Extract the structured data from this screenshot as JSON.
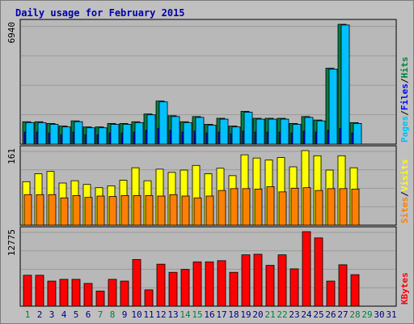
{
  "title": "Daily usage for February 2015",
  "colors": {
    "background": "#c0c0c0",
    "plot_background": "#b8b8b8",
    "gridline": "#9a9a9a",
    "title": "#0000aa",
    "hits": "#008040",
    "files": "#0000ff",
    "pages": "#00c0ff",
    "visits": "#ffff00",
    "sites": "#ff8000",
    "kbytes": "#ff0000",
    "weekday_label": "#008040",
    "day_label": "#000080"
  },
  "chart_data": [
    {
      "type": "bar",
      "title": "Daily usage for February 2015",
      "ymax_label": "6940",
      "ylim": [
        0,
        6940
      ],
      "grid": true,
      "axis_labels": [
        {
          "text": "Pages",
          "color": "#00c0ff"
        },
        {
          "text": "/",
          "color": "#000000"
        },
        {
          "text": "Files",
          "color": "#0000ff"
        },
        {
          "text": "/",
          "color": "#000000"
        },
        {
          "text": "Hits",
          "color": "#008040"
        }
      ],
      "categories": [
        1,
        2,
        3,
        4,
        5,
        6,
        7,
        8,
        9,
        10,
        11,
        12,
        13,
        14,
        15,
        16,
        17,
        18,
        19,
        20,
        21,
        22,
        23,
        24,
        25,
        26,
        27,
        28,
        29,
        30,
        31
      ],
      "series": [
        {
          "name": "Hits",
          "values": [
            1300,
            1300,
            1200,
            1050,
            1350,
            1000,
            1000,
            1200,
            1200,
            1300,
            1750,
            2500,
            1650,
            1300,
            1600,
            1150,
            1500,
            1050,
            1900,
            1500,
            1500,
            1500,
            1200,
            1600,
            1400,
            4400,
            6940,
            1250,
            0,
            0,
            0
          ]
        },
        {
          "name": "Files",
          "values": [
            700,
            700,
            650,
            550,
            700,
            550,
            550,
            650,
            650,
            700,
            800,
            900,
            800,
            700,
            750,
            650,
            700,
            600,
            750,
            700,
            700,
            700,
            650,
            750,
            700,
            800,
            900,
            650,
            0,
            0,
            0
          ]
        },
        {
          "name": "Pages",
          "values": [
            1250,
            1250,
            1150,
            1000,
            1300,
            950,
            950,
            1150,
            1150,
            1250,
            1700,
            2450,
            1600,
            1250,
            1550,
            1100,
            1450,
            1000,
            1850,
            1450,
            1450,
            1450,
            1150,
            1550,
            1350,
            4350,
            6900,
            1200,
            0,
            0,
            0
          ]
        }
      ]
    },
    {
      "type": "bar",
      "ymax_label": "161",
      "ylim": [
        0,
        161
      ],
      "grid": true,
      "axis_labels": [
        {
          "text": "Sites",
          "color": "#ff8000"
        },
        {
          "text": "/",
          "color": "#000000"
        },
        {
          "text": "Visits",
          "color": "#ffff00"
        }
      ],
      "categories": [
        1,
        2,
        3,
        4,
        5,
        6,
        7,
        8,
        9,
        10,
        11,
        12,
        13,
        14,
        15,
        16,
        17,
        18,
        19,
        20,
        21,
        22,
        23,
        24,
        25,
        26,
        27,
        28,
        29,
        30,
        31
      ],
      "series": [
        {
          "name": "Visits",
          "values": [
            94,
            111,
            116,
            91,
            96,
            88,
            81,
            85,
            97,
            124,
            96,
            121,
            114,
            119,
            129,
            111,
            123,
            107,
            152,
            145,
            141,
            146,
            126,
            161,
            150,
            119,
            150,
            124,
            0,
            0,
            0
          ]
        },
        {
          "name": "Sites",
          "values": [
            66,
            66,
            66,
            59,
            64,
            60,
            63,
            62,
            64,
            64,
            64,
            63,
            66,
            63,
            59,
            63,
            75,
            79,
            79,
            78,
            83,
            72,
            80,
            81,
            75,
            79,
            79,
            78,
            0,
            0,
            0
          ]
        }
      ]
    },
    {
      "type": "bar",
      "ymax_label": "12775",
      "ylim": [
        0,
        12775
      ],
      "grid": true,
      "axis_labels": [
        {
          "text": "KBytes",
          "color": "#ff0000"
        }
      ],
      "categories": [
        1,
        2,
        3,
        4,
        5,
        6,
        7,
        8,
        9,
        10,
        11,
        12,
        13,
        14,
        15,
        16,
        17,
        18,
        19,
        20,
        21,
        22,
        23,
        24,
        25,
        26,
        27,
        28,
        29,
        30,
        31
      ],
      "series": [
        {
          "name": "KBytes",
          "values": [
            5300,
            5300,
            4300,
            4600,
            4600,
            3900,
            2600,
            4600,
            4300,
            8000,
            2800,
            7200,
            5800,
            6300,
            7600,
            7600,
            7800,
            5800,
            8800,
            8900,
            7000,
            8800,
            6400,
            12775,
            11700,
            4300,
            7100,
            5400,
            0,
            0,
            0
          ]
        }
      ]
    }
  ],
  "day_labels": [
    {
      "text": "1",
      "weekend": true
    },
    {
      "text": "2",
      "weekend": false
    },
    {
      "text": "3",
      "weekend": false
    },
    {
      "text": "4",
      "weekend": false
    },
    {
      "text": "5",
      "weekend": false
    },
    {
      "text": "6",
      "weekend": false
    },
    {
      "text": "7",
      "weekend": true
    },
    {
      "text": "8",
      "weekend": true
    },
    {
      "text": "9",
      "weekend": false
    },
    {
      "text": "10",
      "weekend": false
    },
    {
      "text": "11",
      "weekend": false
    },
    {
      "text": "12",
      "weekend": false
    },
    {
      "text": "13",
      "weekend": false
    },
    {
      "text": "14",
      "weekend": true
    },
    {
      "text": "15",
      "weekend": true
    },
    {
      "text": "16",
      "weekend": false
    },
    {
      "text": "17",
      "weekend": false
    },
    {
      "text": "18",
      "weekend": false
    },
    {
      "text": "19",
      "weekend": false
    },
    {
      "text": "20",
      "weekend": false
    },
    {
      "text": "21",
      "weekend": true
    },
    {
      "text": "22",
      "weekend": true
    },
    {
      "text": "23",
      "weekend": false
    },
    {
      "text": "24",
      "weekend": false
    },
    {
      "text": "25",
      "weekend": false
    },
    {
      "text": "26",
      "weekend": false
    },
    {
      "text": "27",
      "weekend": false
    },
    {
      "text": "28",
      "weekend": true
    },
    {
      "text": "29",
      "weekend": true
    },
    {
      "text": "30",
      "weekend": false
    },
    {
      "text": "31",
      "weekend": false
    }
  ]
}
